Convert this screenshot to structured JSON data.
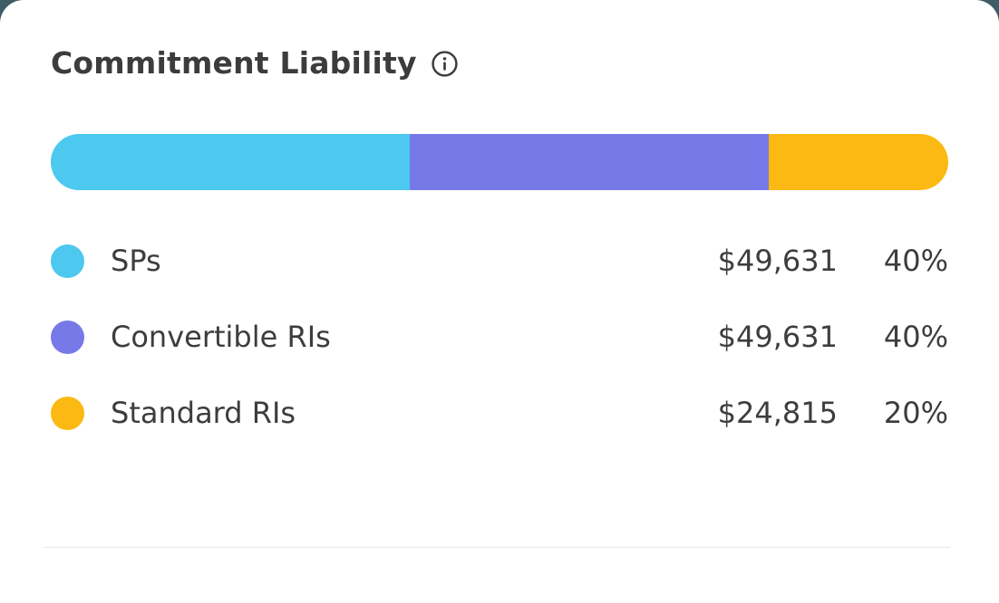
{
  "colors": {
    "page_background_top": "#3F5D66",
    "card_background": "#FFFFFF",
    "text": "#3C3C3C",
    "divider": "#E7E7E7"
  },
  "header": {
    "title": "Commitment Liability"
  },
  "chart_data": {
    "type": "bar",
    "subtype": "horizontal-stacked-single-bar",
    "title": "Commitment Liability",
    "total_percent": 100,
    "legend_position": "below",
    "segments": [
      {
        "label": "SPs",
        "value": 49631,
        "value_display": "$49,631",
        "percent": 40,
        "percent_display": "40%",
        "color": "#4DC8EF"
      },
      {
        "label": "Convertible RIs",
        "value": 49631,
        "value_display": "$49,631",
        "percent": 40,
        "percent_display": "40%",
        "color": "#7779E8"
      },
      {
        "label": "Standard RIs",
        "value": 24815,
        "value_display": "$24,815",
        "percent": 20,
        "percent_display": "20%",
        "color": "#FDB913"
      }
    ]
  }
}
